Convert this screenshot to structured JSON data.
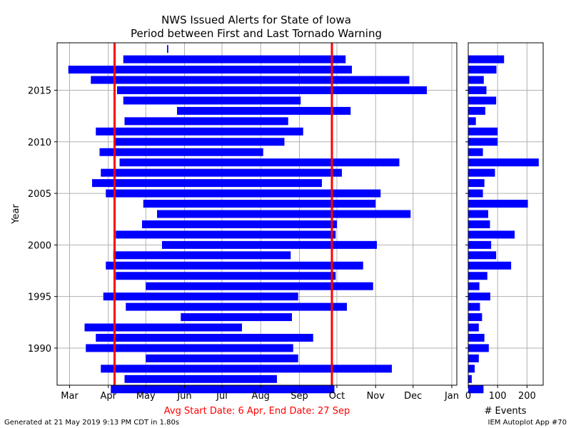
{
  "title": {
    "line1": "NWS Issued Alerts for State of Iowa",
    "line2": "Period between First and Last Tornado Warning"
  },
  "footer": {
    "left": "Generated at 21 May 2019 9:13 PM CDT in 1.80s",
    "right": "IEM Autoplot App #70"
  },
  "colors": {
    "bars": "#0000ff",
    "avg_lines": "#ff0000",
    "grid": "#b0b0b0"
  },
  "chart_data": [
    {
      "type": "bar",
      "orientation": "horizontal-range",
      "ylabel": "Year",
      "xlabel": "Avg Start Date: 6 Apr, End Date: 27 Sep",
      "x_ticks": [
        "Mar",
        "Apr",
        "May",
        "Jun",
        "Jul",
        "Aug",
        "Sep",
        "Oct",
        "Nov",
        "Dec",
        "Jan"
      ],
      "y_ticks": [
        1990,
        1995,
        2000,
        2005,
        2010,
        2015
      ],
      "ylim": [
        1986.4,
        2019.6
      ],
      "avg_start": "Apr 6",
      "avg_end": "Sep 27",
      "grid": true,
      "series": [
        {
          "values": [
            {
              "year": 1986,
              "start": "Apr 3",
              "end": "Sep 29"
            },
            {
              "year": 1987,
              "start": "Apr 14",
              "end": "Aug 14"
            },
            {
              "year": 1988,
              "start": "Mar 26",
              "end": "Nov 14"
            },
            {
              "year": 1989,
              "start": "May 1",
              "end": "Aug 31"
            },
            {
              "year": 1990,
              "start": "Mar 14",
              "end": "Aug 27"
            },
            {
              "year": 1991,
              "start": "Mar 22",
              "end": "Sep 12"
            },
            {
              "year": 1992,
              "start": "Mar 13",
              "end": "Jul 17"
            },
            {
              "year": 1993,
              "start": "May 29",
              "end": "Aug 26"
            },
            {
              "year": 1994,
              "start": "Apr 15",
              "end": "Oct 9"
            },
            {
              "year": 1995,
              "start": "Mar 28",
              "end": "Aug 31"
            },
            {
              "year": 1996,
              "start": "May 1",
              "end": "Oct 30"
            },
            {
              "year": 1997,
              "start": "Apr 7",
              "end": "Sep 30"
            },
            {
              "year": 1998,
              "start": "Mar 30",
              "end": "Oct 22"
            },
            {
              "year": 1999,
              "start": "Apr 5",
              "end": "Aug 25"
            },
            {
              "year": 2000,
              "start": "May 14",
              "end": "Nov 2"
            },
            {
              "year": 2001,
              "start": "Apr 7",
              "end": "Sep 30"
            },
            {
              "year": 2002,
              "start": "Apr 28",
              "end": "Oct 1"
            },
            {
              "year": 2003,
              "start": "May 10",
              "end": "Nov 29"
            },
            {
              "year": 2004,
              "start": "Apr 29",
              "end": "Nov 1"
            },
            {
              "year": 2005,
              "start": "Mar 30",
              "end": "Nov 5"
            },
            {
              "year": 2006,
              "start": "Mar 19",
              "end": "Sep 19"
            },
            {
              "year": 2007,
              "start": "Mar 26",
              "end": "Oct 5"
            },
            {
              "year": 2008,
              "start": "Apr 10",
              "end": "Nov 20"
            },
            {
              "year": 2009,
              "start": "Mar 25",
              "end": "Aug 3"
            },
            {
              "year": 2010,
              "start": "Apr 6",
              "end": "Aug 20"
            },
            {
              "year": 2011,
              "start": "Mar 22",
              "end": "Sep 4"
            },
            {
              "year": 2012,
              "start": "Apr 14",
              "end": "Aug 23"
            },
            {
              "year": 2013,
              "start": "May 26",
              "end": "Oct 12"
            },
            {
              "year": 2014,
              "start": "Apr 13",
              "end": "Sep 2"
            },
            {
              "year": 2015,
              "start": "Apr 8",
              "end": "Dec 12"
            },
            {
              "year": 2016,
              "start": "Mar 18",
              "end": "Nov 28"
            },
            {
              "year": 2017,
              "start": "Feb 28",
              "end": "Oct 13"
            },
            {
              "year": 2018,
              "start": "Apr 13",
              "end": "Oct 8"
            },
            {
              "year": 2019,
              "start": "May 18",
              "end": "May 19"
            }
          ]
        }
      ]
    },
    {
      "type": "bar",
      "orientation": "horizontal",
      "xlabel": "# Events",
      "x_ticks": [
        0,
        100,
        200
      ],
      "xlim": [
        0,
        255
      ],
      "series": [
        {
          "categories": [
            1986,
            1987,
            1988,
            1989,
            1990,
            1991,
            1992,
            1993,
            1994,
            1995,
            1996,
            1997,
            1998,
            1999,
            2000,
            2001,
            2002,
            2003,
            2004,
            2005,
            2006,
            2007,
            2008,
            2009,
            2010,
            2011,
            2012,
            2013,
            2014,
            2015,
            2016,
            2017,
            2018,
            2019
          ],
          "values": [
            52,
            12,
            22,
            36,
            70,
            55,
            36,
            47,
            40,
            75,
            38,
            65,
            146,
            95,
            78,
            158,
            74,
            68,
            203,
            50,
            55,
            91,
            240,
            50,
            100,
            100,
            26,
            58,
            95,
            62,
            53,
            96,
            122,
            0
          ]
        }
      ]
    }
  ]
}
